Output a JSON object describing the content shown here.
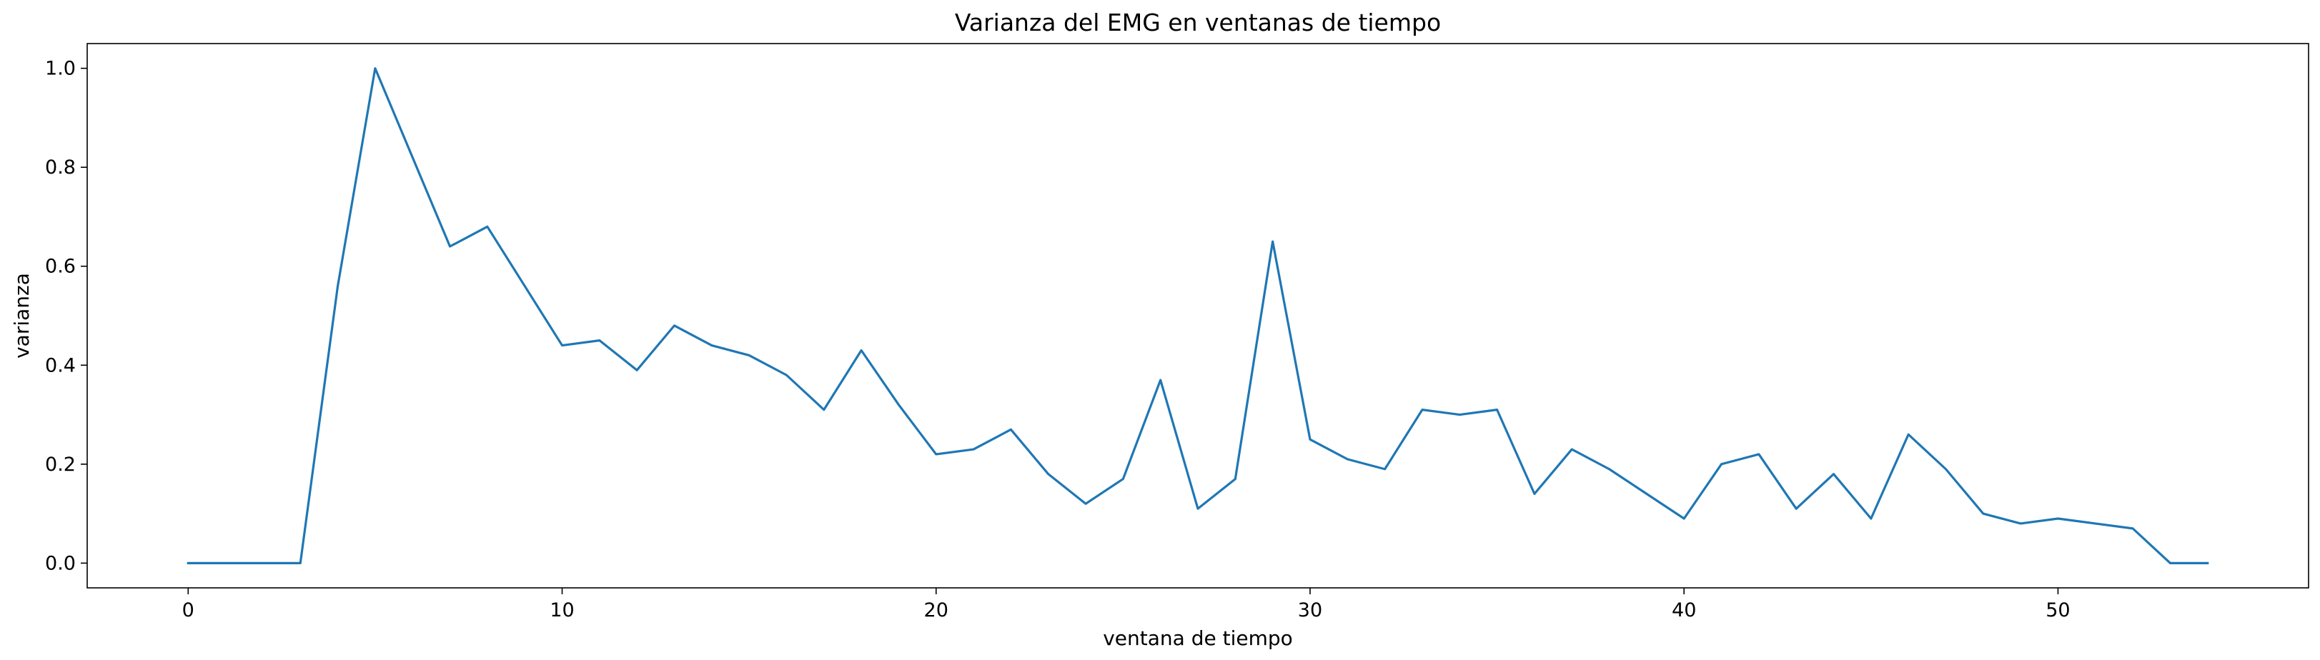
{
  "chart_data": {
    "type": "line",
    "title": "Varianza del EMG en ventanas de tiempo",
    "xlabel": "ventana de tiempo",
    "ylabel": "varianza",
    "xlim": [
      -2.7,
      56.7
    ],
    "ylim": [
      -0.05,
      1.05
    ],
    "xticks": [
      0,
      10,
      20,
      30,
      40,
      50
    ],
    "yticks": [
      0.0,
      0.2,
      0.4,
      0.6,
      0.8,
      1.0
    ],
    "xtick_labels": [
      "0",
      "10",
      "20",
      "30",
      "40",
      "50"
    ],
    "ytick_labels": [
      "0.0",
      "0.2",
      "0.4",
      "0.6",
      "0.8",
      "1.0"
    ],
    "grid": false,
    "series": [
      {
        "color": "#1f77b4",
        "x": [
          0,
          1,
          2,
          3,
          4,
          5,
          6,
          7,
          8,
          9,
          10,
          11,
          12,
          13,
          14,
          15,
          16,
          17,
          18,
          19,
          20,
          21,
          22,
          23,
          24,
          25,
          26,
          27,
          28,
          29,
          30,
          31,
          32,
          33,
          34,
          35,
          36,
          37,
          38,
          39,
          40,
          41,
          42,
          43,
          44,
          45,
          46,
          47,
          48,
          49,
          50,
          51,
          52,
          53,
          54
        ],
        "values": [
          0.0,
          0.0,
          0.0,
          0.0,
          0.56,
          1.0,
          0.82,
          0.64,
          0.68,
          0.56,
          0.44,
          0.45,
          0.39,
          0.48,
          0.44,
          0.42,
          0.38,
          0.31,
          0.43,
          0.32,
          0.22,
          0.23,
          0.27,
          0.18,
          0.12,
          0.17,
          0.37,
          0.11,
          0.17,
          0.65,
          0.25,
          0.21,
          0.19,
          0.31,
          0.3,
          0.31,
          0.14,
          0.23,
          0.19,
          0.14,
          0.09,
          0.2,
          0.22,
          0.11,
          0.18,
          0.09,
          0.26,
          0.19,
          0.1,
          0.08,
          0.09,
          0.08,
          0.07,
          0.0,
          0.0
        ]
      }
    ]
  }
}
